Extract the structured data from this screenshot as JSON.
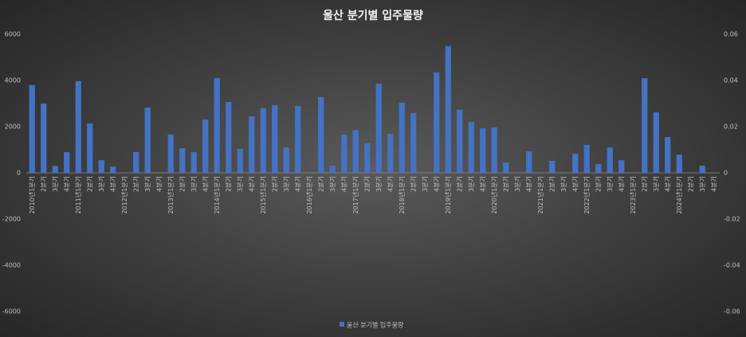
{
  "chart_data": {
    "type": "bar",
    "title": "울산 분기별 입주물량",
    "categories": [
      "2010년1분기",
      "2분기",
      "3분기",
      "4분기",
      "2011년1분기",
      "2분기",
      "3분기",
      "4분기",
      "2012년1분기",
      "2분기",
      "3분기",
      "4분기",
      "2013년1분기",
      "2분기",
      "3분기",
      "4분기",
      "2014년1분기",
      "2분기",
      "3분기",
      "4분기",
      "2015년1분기",
      "2분기",
      "3분기",
      "4분기",
      "2016년1분기",
      "2분기",
      "3분기",
      "4분기",
      "2017년1분기",
      "2분기",
      "3분기",
      "4분기",
      "2018년1분기",
      "2분기",
      "3분기",
      "4분기",
      "2019년1분기",
      "2분기",
      "3분기",
      "4분기",
      "2020년1분기",
      "2분기",
      "3분기",
      "4분기",
      "2021년1분기",
      "2분기",
      "3분기",
      "4분기",
      "2022년1분기",
      "2분기",
      "3분기",
      "4분기",
      "2023년1분기",
      "2분기",
      "3분기",
      "4분기",
      "2024년1분기",
      "2분기",
      "3분기",
      "4분기"
    ],
    "series": [
      {
        "name": "울산 분기별 입주물량",
        "color": "#4472c4",
        "values": [
          3800,
          3000,
          300,
          900,
          3970,
          2140,
          550,
          270,
          0,
          900,
          2830,
          0,
          1660,
          1070,
          900,
          2310,
          4100,
          3070,
          1035,
          2450,
          2800,
          2930,
          1100,
          2900,
          0,
          3280,
          310,
          1660,
          1860,
          1280,
          3860,
          1690,
          3040,
          2590,
          0,
          4350,
          5490,
          2730,
          2210,
          1930,
          1970,
          450,
          0,
          930,
          0,
          520,
          0,
          830,
          1210,
          380,
          1100,
          550,
          0,
          4100,
          2620,
          1550,
          790,
          0,
          310,
          0
        ]
      }
    ],
    "ylim": [
      -6000,
      6000
    ],
    "yticks": [
      -6000,
      -4000,
      -2000,
      0,
      2000,
      4000,
      6000
    ],
    "y2lim": [
      -0.06,
      0.06
    ],
    "y2ticks": [
      -0.06,
      -0.04,
      -0.02,
      0,
      0.02,
      0.04,
      0.06
    ],
    "grid": false,
    "legend": "bottom"
  }
}
